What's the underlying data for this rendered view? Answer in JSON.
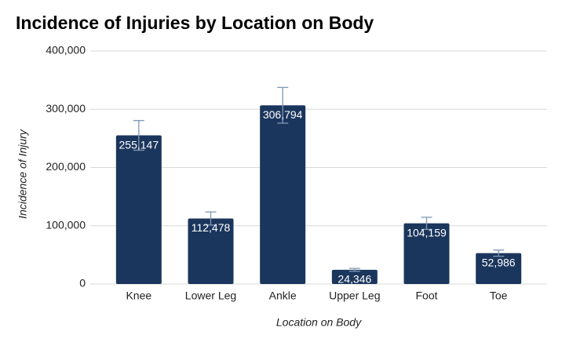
{
  "chart_data": {
    "type": "bar",
    "title": "Incidence of Injuries by Location on Body",
    "x_label": "Location on Body",
    "y_label": "Incidence of Injury",
    "categories": [
      "Knee",
      "Lower Leg",
      "Ankle",
      "Upper Leg",
      "Foot",
      "Toe"
    ],
    "values": [
      255147,
      112478,
      306794,
      24346,
      104159,
      52986
    ],
    "value_labels": [
      "255,147",
      "112,478",
      "306,794",
      "24,346",
      "104,159",
      "52,986"
    ],
    "errors": [
      25515,
      11248,
      30679,
      2435,
      10416,
      5299
    ],
    "color": "#1b365d",
    "error_color": "#7f98b2",
    "ylim": [
      0,
      400000
    ],
    "yticks": [
      0,
      {
        "value": 100000,
        "label": "100,000"
      },
      {
        "value": 200000,
        "label": "200,000"
      },
      {
        "value": 300000,
        "label": "300,000"
      },
      {
        "value": 400000,
        "label": "400,000"
      }
    ],
    "grid": true
  }
}
